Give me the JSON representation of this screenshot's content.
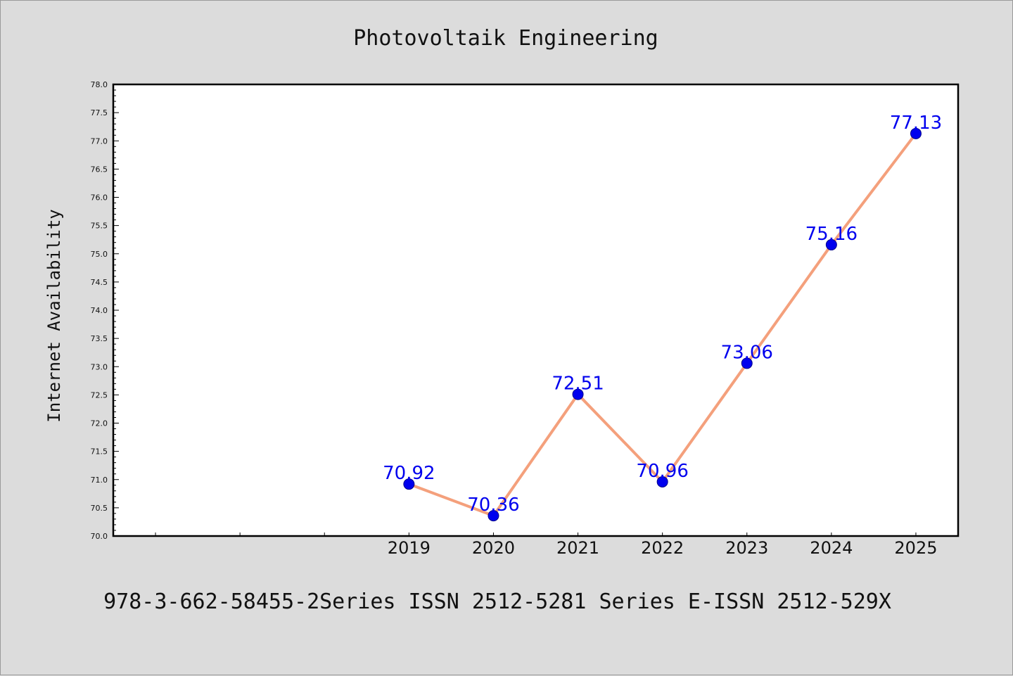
{
  "colors": {
    "background": "#dcdcdc",
    "plot_bg": "#ffffff",
    "line": "#f4a07c",
    "marker": "#0000ee",
    "label": "#0000ee"
  },
  "footer": "978-3-662-58455-2Series ISSN 2512-5281 Series E-ISSN 2512-529X",
  "chart_data": {
    "type": "line",
    "title": "Photovoltaik Engineering",
    "xlabel": "",
    "ylabel": "Internet Availability",
    "ylim": [
      70.0,
      78.0
    ],
    "yticks": [
      "70.0",
      "70.5",
      "71.0",
      "71.5",
      "72.0",
      "72.5",
      "73.0",
      "73.5",
      "74.0",
      "74.5",
      "75.0",
      "75.5",
      "76.0",
      "76.5",
      "77.0",
      "77.5",
      "78.0"
    ],
    "xlim": [
      2015.5,
      2025.5
    ],
    "x_tick_labels": [
      "2019",
      "2020",
      "2021",
      "2022",
      "2023",
      "2024",
      "2025"
    ],
    "grid": false,
    "series": [
      {
        "x": [
          2019,
          2020,
          2021,
          2022,
          2023,
          2024,
          2025
        ],
        "values": [
          70.92,
          70.36,
          72.51,
          70.96,
          73.06,
          75.16,
          77.13
        ],
        "labels": [
          "70.92",
          "70.36",
          "72.51",
          "70.96",
          "73.06",
          "75.16",
          "77.13"
        ]
      }
    ]
  }
}
